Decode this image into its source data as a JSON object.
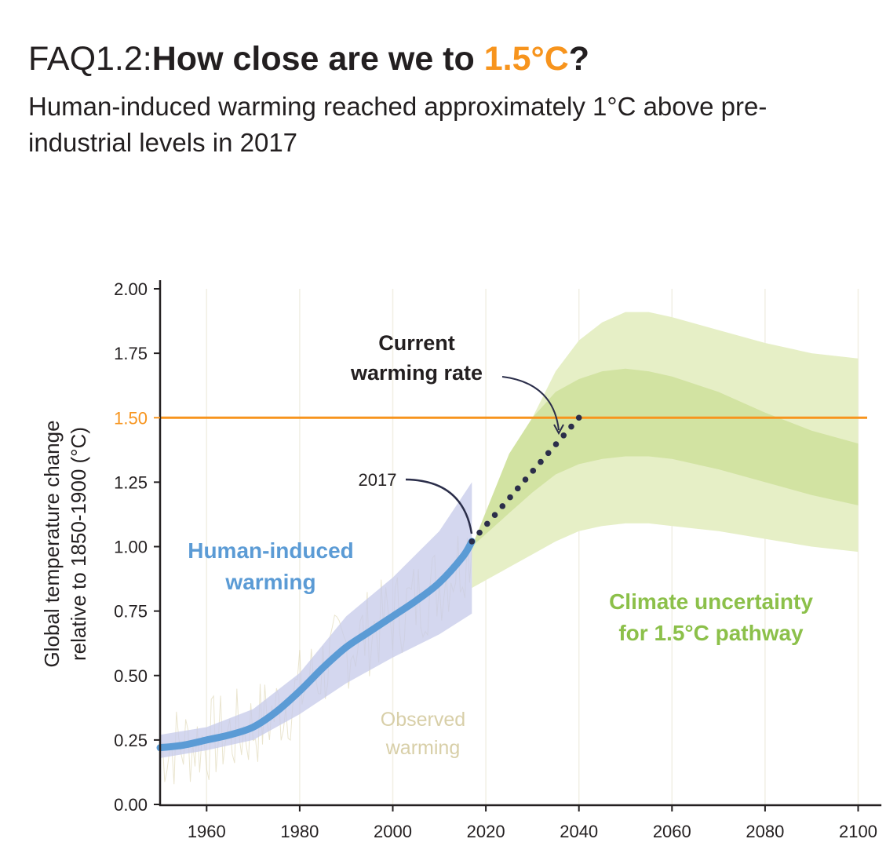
{
  "title": {
    "prefix": "FAQ1.2:",
    "main": "How close are we to ",
    "highlight": "1.5°C",
    "suffix": "?"
  },
  "subtitle": "Human-induced warming reached approximately 1°C above pre-industrial levels in 2017",
  "colors": {
    "human_induced": "#5b9bd5",
    "human_band": "#c5cae9",
    "threshold": "#f7941d",
    "pathway_outer": "#e6efc6",
    "pathway_inner": "#d2e3a2",
    "pathway_label": "#8cc04a",
    "observed": "#d8cfa8",
    "projection_dots": "#2b2e4a"
  },
  "chart_data": {
    "type": "line",
    "xlabel": "",
    "ylabel": [
      "Global temperature change",
      "relative to 1850-1900 (°C)"
    ],
    "xlim": [
      1950,
      2105
    ],
    "ylim": [
      0,
      2
    ],
    "x_ticks": [
      "1960",
      "1980",
      "2000",
      "2020",
      "2040",
      "2060",
      "2080",
      "2100"
    ],
    "y_ticks": [
      "0.00",
      "0.25",
      "0.50",
      "0.75",
      "1.00",
      "1.25",
      "1.50",
      "1.75",
      "2.00"
    ],
    "highlight_tick": "1.50",
    "threshold": 1.5,
    "grid": false,
    "human_induced": {
      "x": [
        1950,
        1955,
        1960,
        1965,
        1970,
        1975,
        1980,
        1985,
        1990,
        1995,
        2000,
        2005,
        2010,
        2015,
        2017
      ],
      "y": [
        0.22,
        0.23,
        0.25,
        0.27,
        0.3,
        0.36,
        0.44,
        0.53,
        0.61,
        0.67,
        0.73,
        0.79,
        0.86,
        0.96,
        1.02
      ]
    },
    "human_band": {
      "x": [
        1950,
        1960,
        1970,
        1980,
        1990,
        2000,
        2010,
        2017
      ],
      "lower": [
        0.18,
        0.21,
        0.25,
        0.35,
        0.47,
        0.57,
        0.66,
        0.74
      ],
      "upper": [
        0.27,
        0.3,
        0.37,
        0.51,
        0.73,
        0.88,
        1.06,
        1.25
      ]
    },
    "current_rate": {
      "x": [
        2017,
        2040
      ],
      "y": [
        1.02,
        1.5
      ]
    },
    "pathway_outer": {
      "x": [
        2017,
        2025,
        2030,
        2035,
        2040,
        2045,
        2050,
        2055,
        2060,
        2070,
        2080,
        2090,
        2100
      ],
      "lower": [
        0.84,
        0.92,
        0.97,
        1.02,
        1.06,
        1.08,
        1.09,
        1.09,
        1.08,
        1.06,
        1.03,
        1.0,
        0.98
      ],
      "upper": [
        1.0,
        1.28,
        1.5,
        1.68,
        1.8,
        1.87,
        1.91,
        1.91,
        1.89,
        1.84,
        1.79,
        1.75,
        1.73
      ]
    },
    "pathway_inner": {
      "x": [
        2017,
        2025,
        2030,
        2035,
        2040,
        2045,
        2050,
        2055,
        2060,
        2070,
        2080,
        2090,
        2100
      ],
      "lower": [
        1.0,
        1.13,
        1.21,
        1.28,
        1.32,
        1.34,
        1.35,
        1.35,
        1.34,
        1.3,
        1.25,
        1.2,
        1.16
      ],
      "upper": [
        1.0,
        1.36,
        1.5,
        1.6,
        1.65,
        1.68,
        1.69,
        1.68,
        1.66,
        1.6,
        1.52,
        1.45,
        1.4
      ]
    },
    "annotations": {
      "current_rate": [
        "Current",
        "warming rate"
      ],
      "year_2017": "2017",
      "human_induced": [
        "Human-induced",
        "warming"
      ],
      "pathway": [
        "Climate uncertainty",
        "for 1.5°C pathway"
      ],
      "observed": [
        "Observed",
        "warming"
      ]
    }
  }
}
